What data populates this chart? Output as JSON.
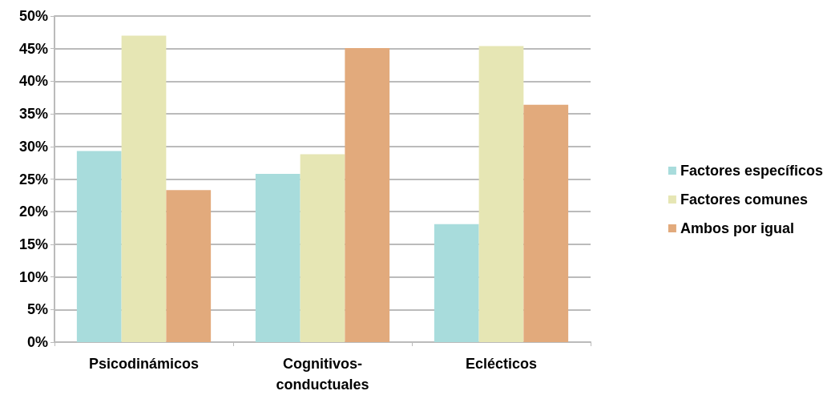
{
  "chart_data": {
    "type": "bar",
    "categories": [
      "Psicodinámicos",
      "Cognitivos-\nconductuales",
      "Eclécticos"
    ],
    "series": [
      {
        "name": "Factores específicos",
        "color": "#a8dcdc",
        "values": [
          29.3,
          25.8,
          18.1
        ]
      },
      {
        "name": "Factores comunes",
        "color": "#e6e6b4",
        "values": [
          47.0,
          28.8,
          45.4
        ]
      },
      {
        "name": "Ambos por igual",
        "color": "#e2aa7c",
        "values": [
          23.3,
          45.1,
          36.4
        ]
      }
    ],
    "ylim": [
      0,
      50
    ],
    "yticks": [
      {
        "value": 0,
        "label": "0%"
      },
      {
        "value": 5,
        "label": "5%"
      },
      {
        "value": 10,
        "label": "10%"
      },
      {
        "value": 15,
        "label": "15%"
      },
      {
        "value": 20,
        "label": "20%"
      },
      {
        "value": 25,
        "label": "25%"
      },
      {
        "value": 30,
        "label": "30%"
      },
      {
        "value": 35,
        "label": "35%"
      },
      {
        "value": 40,
        "label": "40%"
      },
      {
        "value": 45,
        "label": "45%"
      },
      {
        "value": 50,
        "label": "50%"
      }
    ],
    "grid": true,
    "legend": "right"
  }
}
